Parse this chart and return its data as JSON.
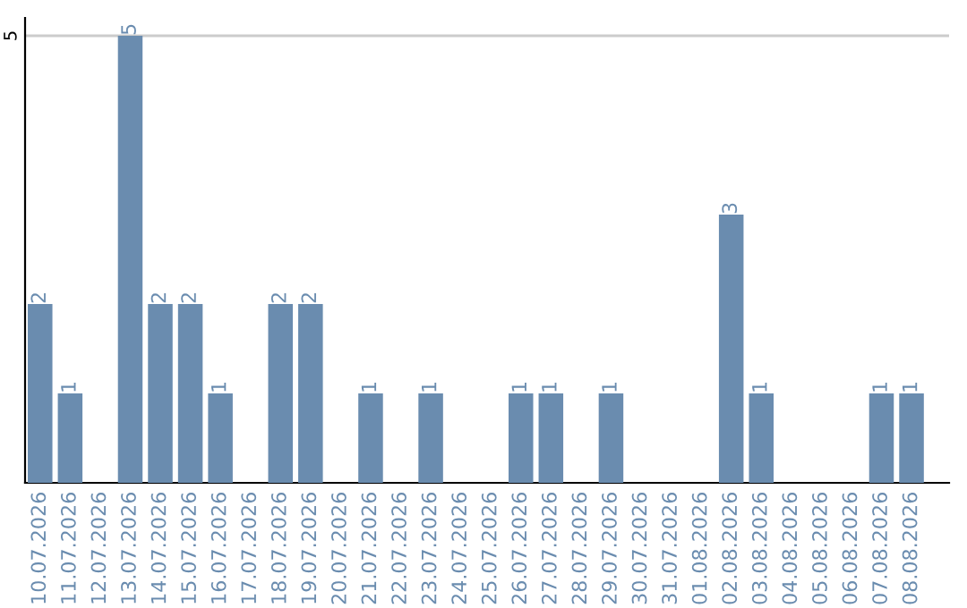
{
  "chart_data": {
    "type": "bar",
    "categories": [
      "10.07.2026",
      "11.07.2026",
      "12.07.2026",
      "13.07.2026",
      "14.07.2026",
      "15.07.2026",
      "16.07.2026",
      "17.07.2026",
      "18.07.2026",
      "19.07.2026",
      "20.07.2026",
      "21.07.2026",
      "22.07.2026",
      "23.07.2026",
      "24.07.2026",
      "25.07.2026",
      "26.07.2026",
      "27.07.2026",
      "28.07.2026",
      "29.07.2026",
      "30.07.2026",
      "31.07.2026",
      "01.08.2026",
      "02.08.2026",
      "03.08.2026",
      "04.08.2026",
      "05.08.2026",
      "06.08.2026",
      "07.08.2026",
      "08.08.2026"
    ],
    "values": [
      2,
      1,
      0,
      5,
      2,
      2,
      1,
      0,
      2,
      2,
      0,
      1,
      0,
      1,
      0,
      0,
      1,
      1,
      0,
      1,
      0,
      0,
      0,
      3,
      1,
      0,
      0,
      0,
      1,
      1
    ],
    "value_labels": [
      "2",
      "1",
      null,
      "5",
      "2",
      "2",
      "1",
      null,
      "2",
      "2",
      null,
      "1",
      null,
      "1",
      null,
      null,
      "1",
      "1",
      null,
      "1",
      null,
      null,
      null,
      "3",
      "1",
      null,
      null,
      null,
      "1",
      "1"
    ],
    "color": "#6a8caf",
    "ylim": [
      0,
      5.2
    ],
    "yticks": [
      5
    ],
    "grid": "y"
  }
}
